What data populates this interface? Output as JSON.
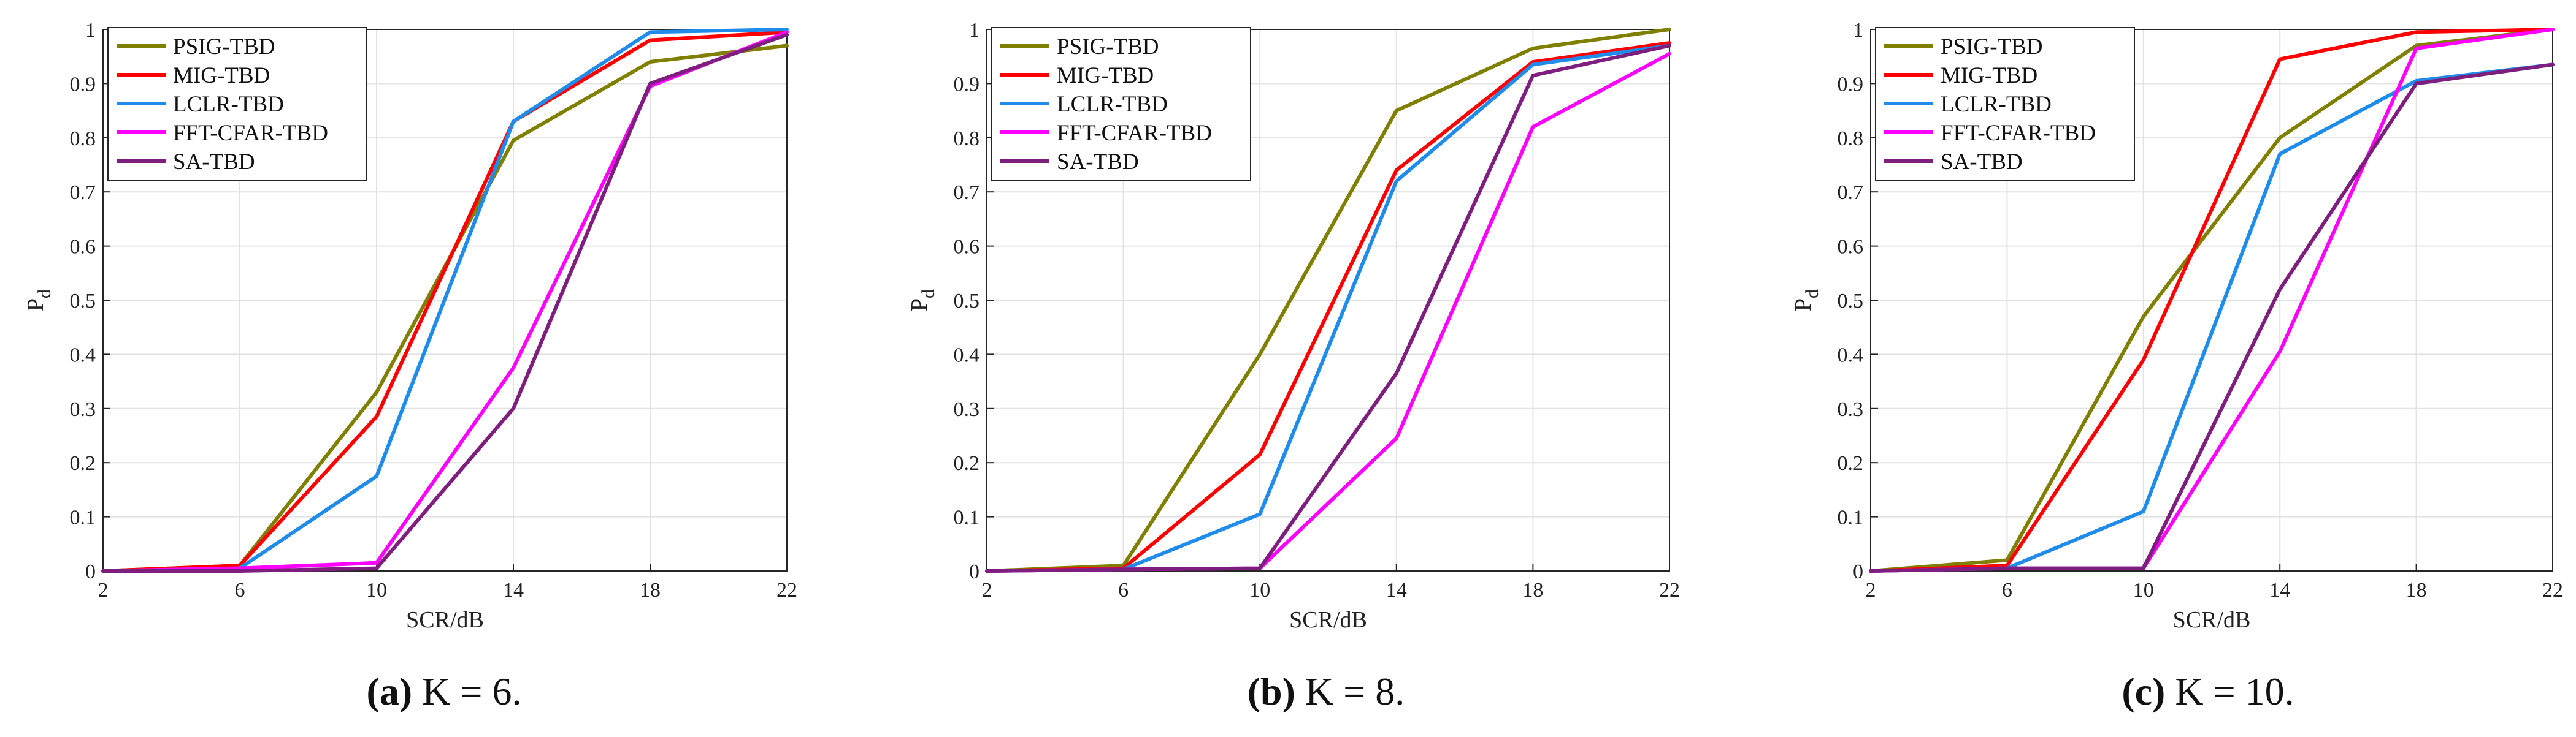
{
  "colors": {
    "PSIG-TBD": "#7f7f00",
    "MIG-TBD": "#ff0000",
    "LCLR-TBD": "#1f8ceb",
    "FFT-CFAR-TBD": "#ff00ff",
    "SA-TBD": "#7e1e7e",
    "grid": "#e2e2e2",
    "axis": "#262626"
  },
  "chart_data": [
    {
      "type": "line",
      "xlabel": "SCR/dB",
      "ylabel_main": "P",
      "ylabel_sub": "d",
      "x": [
        2,
        6,
        10,
        14,
        18,
        22
      ],
      "xlim": [
        2,
        22
      ],
      "ylim": [
        0,
        1
      ],
      "x_ticks": [
        2,
        6,
        10,
        14,
        18,
        22
      ],
      "y_ticks": [
        0,
        0.1,
        0.2,
        0.3,
        0.4,
        0.5,
        0.6,
        0.7,
        0.8,
        0.9,
        1
      ],
      "grid": true,
      "legend_position": "top-left",
      "series": [
        {
          "name": "PSIG-TBD",
          "values": [
            0.0,
            0.01,
            0.33,
            0.795,
            0.94,
            0.97
          ]
        },
        {
          "name": "MIG-TBD",
          "values": [
            0.0,
            0.01,
            0.285,
            0.83,
            0.98,
            0.995
          ]
        },
        {
          "name": "LCLR-TBD",
          "values": [
            0.0,
            0.005,
            0.175,
            0.83,
            0.995,
            1.0
          ]
        },
        {
          "name": "FFT-CFAR-TBD",
          "values": [
            0.0,
            0.005,
            0.015,
            0.375,
            0.895,
            0.995
          ]
        },
        {
          "name": "SA-TBD",
          "values": [
            0.0,
            0.0,
            0.005,
            0.3,
            0.9,
            0.99
          ]
        }
      ],
      "caption": {
        "label": "(a)",
        "text": " K = 6."
      }
    },
    {
      "type": "line",
      "xlabel": "SCR/dB",
      "ylabel_main": "P",
      "ylabel_sub": "d",
      "x": [
        2,
        6,
        10,
        14,
        18,
        22
      ],
      "xlim": [
        2,
        22
      ],
      "ylim": [
        0,
        1
      ],
      "x_ticks": [
        2,
        6,
        10,
        14,
        18,
        22
      ],
      "y_ticks": [
        0,
        0.1,
        0.2,
        0.3,
        0.4,
        0.5,
        0.6,
        0.7,
        0.8,
        0.9,
        1
      ],
      "grid": true,
      "legend_position": "top-left",
      "series": [
        {
          "name": "PSIG-TBD",
          "values": [
            0.0,
            0.01,
            0.4,
            0.85,
            0.965,
            1.0
          ]
        },
        {
          "name": "MIG-TBD",
          "values": [
            0.0,
            0.005,
            0.215,
            0.74,
            0.94,
            0.975
          ]
        },
        {
          "name": "LCLR-TBD",
          "values": [
            0.0,
            0.003,
            0.105,
            0.72,
            0.935,
            0.97
          ]
        },
        {
          "name": "FFT-CFAR-TBD",
          "values": [
            0.0,
            0.003,
            0.005,
            0.245,
            0.82,
            0.955
          ]
        },
        {
          "name": "SA-TBD",
          "values": [
            0.0,
            0.003,
            0.005,
            0.365,
            0.915,
            0.97
          ]
        }
      ],
      "caption": {
        "label": "(b)",
        "text": " K = 8."
      }
    },
    {
      "type": "line",
      "xlabel": "SCR/dB",
      "ylabel_main": "P",
      "ylabel_sub": "d",
      "x": [
        2,
        6,
        10,
        14,
        18,
        22
      ],
      "xlim": [
        2,
        22
      ],
      "ylim": [
        0,
        1
      ],
      "x_ticks": [
        2,
        6,
        10,
        14,
        18,
        22
      ],
      "y_ticks": [
        0,
        0.1,
        0.2,
        0.3,
        0.4,
        0.5,
        0.6,
        0.7,
        0.8,
        0.9,
        1
      ],
      "grid": true,
      "legend_position": "top-left",
      "series": [
        {
          "name": "PSIG-TBD",
          "values": [
            0.0,
            0.02,
            0.47,
            0.8,
            0.97,
            1.0
          ]
        },
        {
          "name": "MIG-TBD",
          "values": [
            0.0,
            0.01,
            0.39,
            0.945,
            0.995,
            1.0
          ]
        },
        {
          "name": "LCLR-TBD",
          "values": [
            0.0,
            0.005,
            0.11,
            0.77,
            0.905,
            0.935
          ]
        },
        {
          "name": "FFT-CFAR-TBD",
          "values": [
            0.0,
            0.005,
            0.005,
            0.405,
            0.965,
            1.0
          ]
        },
        {
          "name": "SA-TBD",
          "values": [
            0.0,
            0.005,
            0.005,
            0.52,
            0.9,
            0.935
          ]
        }
      ],
      "caption": {
        "label": "(c)",
        "text": " K = 10."
      }
    }
  ]
}
